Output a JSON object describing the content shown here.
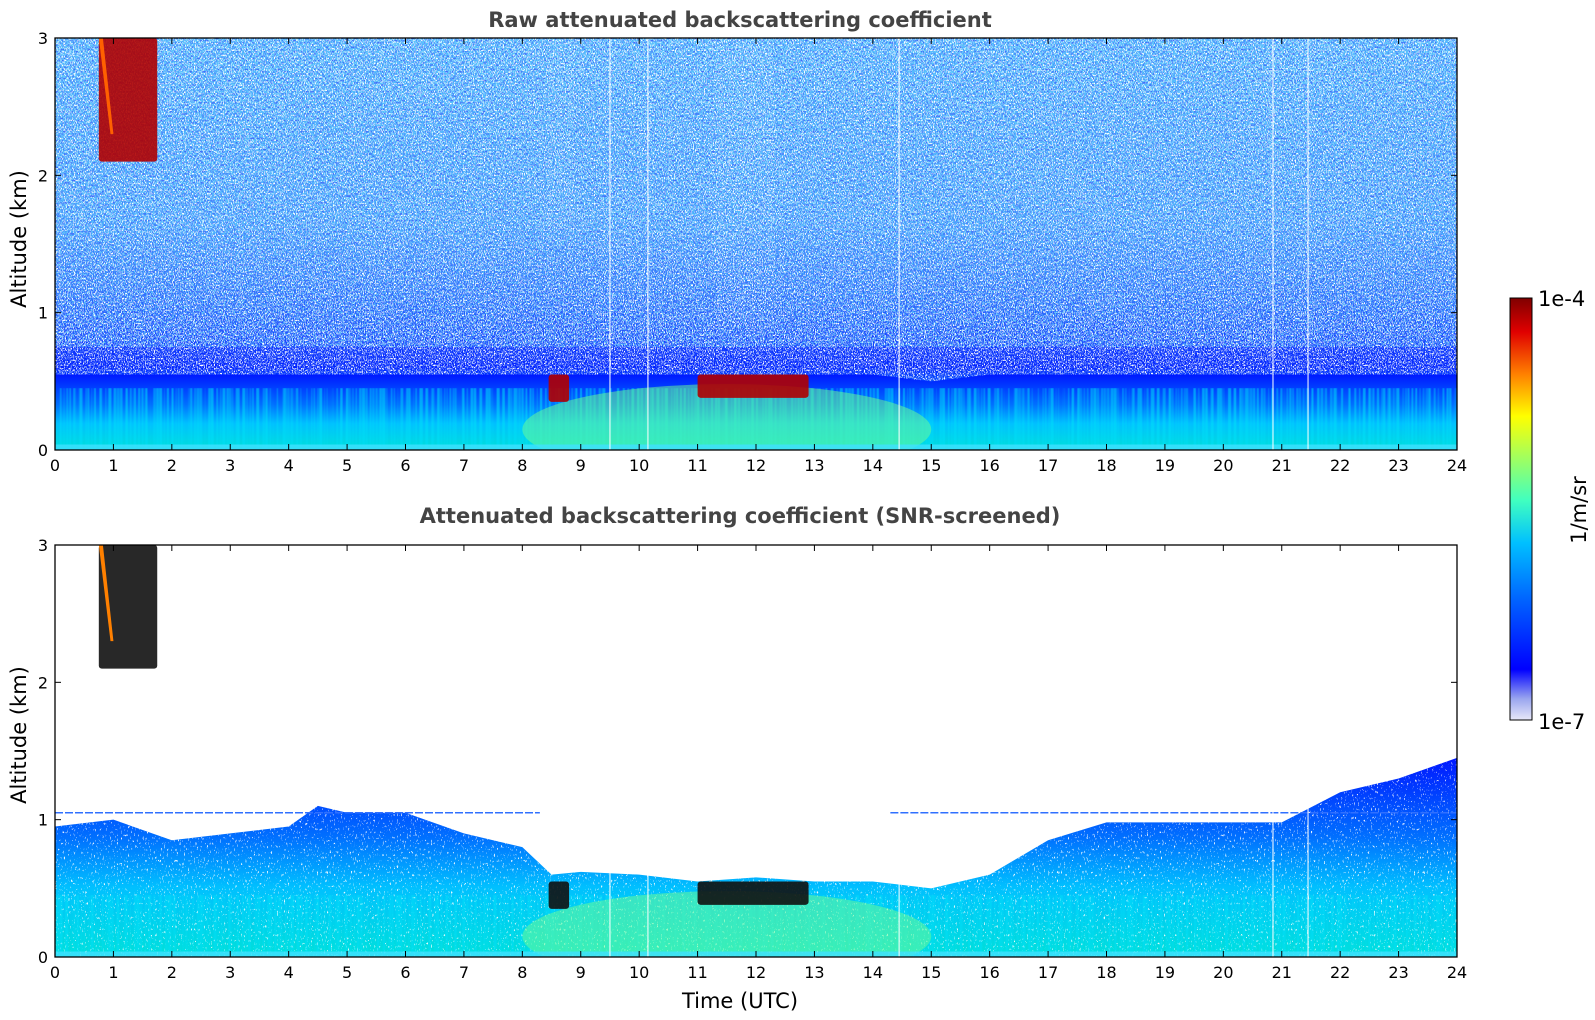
{
  "chart_data": [
    {
      "type": "heatmap",
      "title": "Raw attenuated backscattering coefficient",
      "xlabel": "",
      "ylabel": "Altitude (km)",
      "xlim": [
        0,
        24
      ],
      "ylim": [
        0,
        3
      ],
      "xticks": [
        0,
        1,
        2,
        3,
        4,
        5,
        6,
        7,
        8,
        9,
        10,
        11,
        12,
        13,
        14,
        15,
        16,
        17,
        18,
        19,
        20,
        21,
        22,
        23,
        24
      ],
      "yticks": [
        0,
        1,
        2,
        3
      ],
      "data_gaps_x": [
        9.5,
        10.15,
        14.45,
        20.85,
        21.45
      ],
      "strong_echo_features": [
        {
          "time_range": [
            8.45,
            8.8
          ],
          "altitude_range": [
            0.35,
            0.55
          ],
          "level": "1e-4"
        },
        {
          "time_range": [
            11.0,
            12.9
          ],
          "altitude_range": [
            0.38,
            0.55
          ],
          "level": "1e-4"
        },
        {
          "time_range": [
            0.75,
            1.75
          ],
          "altitude_range": [
            2.1,
            3.0
          ],
          "level": "1e-4"
        }
      ]
    },
    {
      "type": "heatmap",
      "title": "Attenuated backscattering coefficient (SNR-screened)",
      "xlabel": "Time (UTC)",
      "ylabel": "Altitude (km)",
      "xlim": [
        0,
        24
      ],
      "ylim": [
        0,
        3
      ],
      "xticks": [
        0,
        1,
        2,
        3,
        4,
        5,
        6,
        7,
        8,
        9,
        10,
        11,
        12,
        13,
        14,
        15,
        16,
        17,
        18,
        19,
        20,
        21,
        22,
        23,
        24
      ],
      "yticks": [
        0,
        1,
        2,
        3
      ],
      "boundary_layer_top_km": [
        [
          0,
          0.95
        ],
        [
          1,
          1.0
        ],
        [
          2,
          0.85
        ],
        [
          3,
          0.9
        ],
        [
          4,
          0.95
        ],
        [
          4.5,
          1.1
        ],
        [
          5,
          1.05
        ],
        [
          6,
          1.05
        ],
        [
          7,
          0.9
        ],
        [
          8,
          0.8
        ],
        [
          8.5,
          0.6
        ],
        [
          9,
          0.62
        ],
        [
          10,
          0.6
        ],
        [
          11,
          0.55
        ],
        [
          12,
          0.58
        ],
        [
          13,
          0.55
        ],
        [
          14,
          0.55
        ],
        [
          15,
          0.5
        ],
        [
          16,
          0.6
        ],
        [
          17,
          0.85
        ],
        [
          18,
          0.98
        ],
        [
          19,
          0.98
        ],
        [
          20,
          0.98
        ],
        [
          21,
          0.98
        ],
        [
          22,
          1.2
        ],
        [
          23,
          1.3
        ],
        [
          24,
          1.45
        ]
      ]
    }
  ],
  "colorbar": {
    "label": "1/m/sr",
    "max_label": "1e-4",
    "min_label": "1e-7",
    "colormap": [
      "#e8e8f8",
      "#9aa6ef",
      "#0000ff",
      "#0060ff",
      "#00c0ff",
      "#40ffc0",
      "#a0ff60",
      "#ffff00",
      "#ff8000",
      "#e00000",
      "#800000"
    ]
  },
  "titles": {
    "top": "Raw attenuated backscattering coefficient",
    "bottom": "Attenuated backscattering coefficient (SNR-screened)"
  },
  "axes": {
    "ylabel": "Altitude (km)",
    "xlabel": "Time (UTC)"
  }
}
